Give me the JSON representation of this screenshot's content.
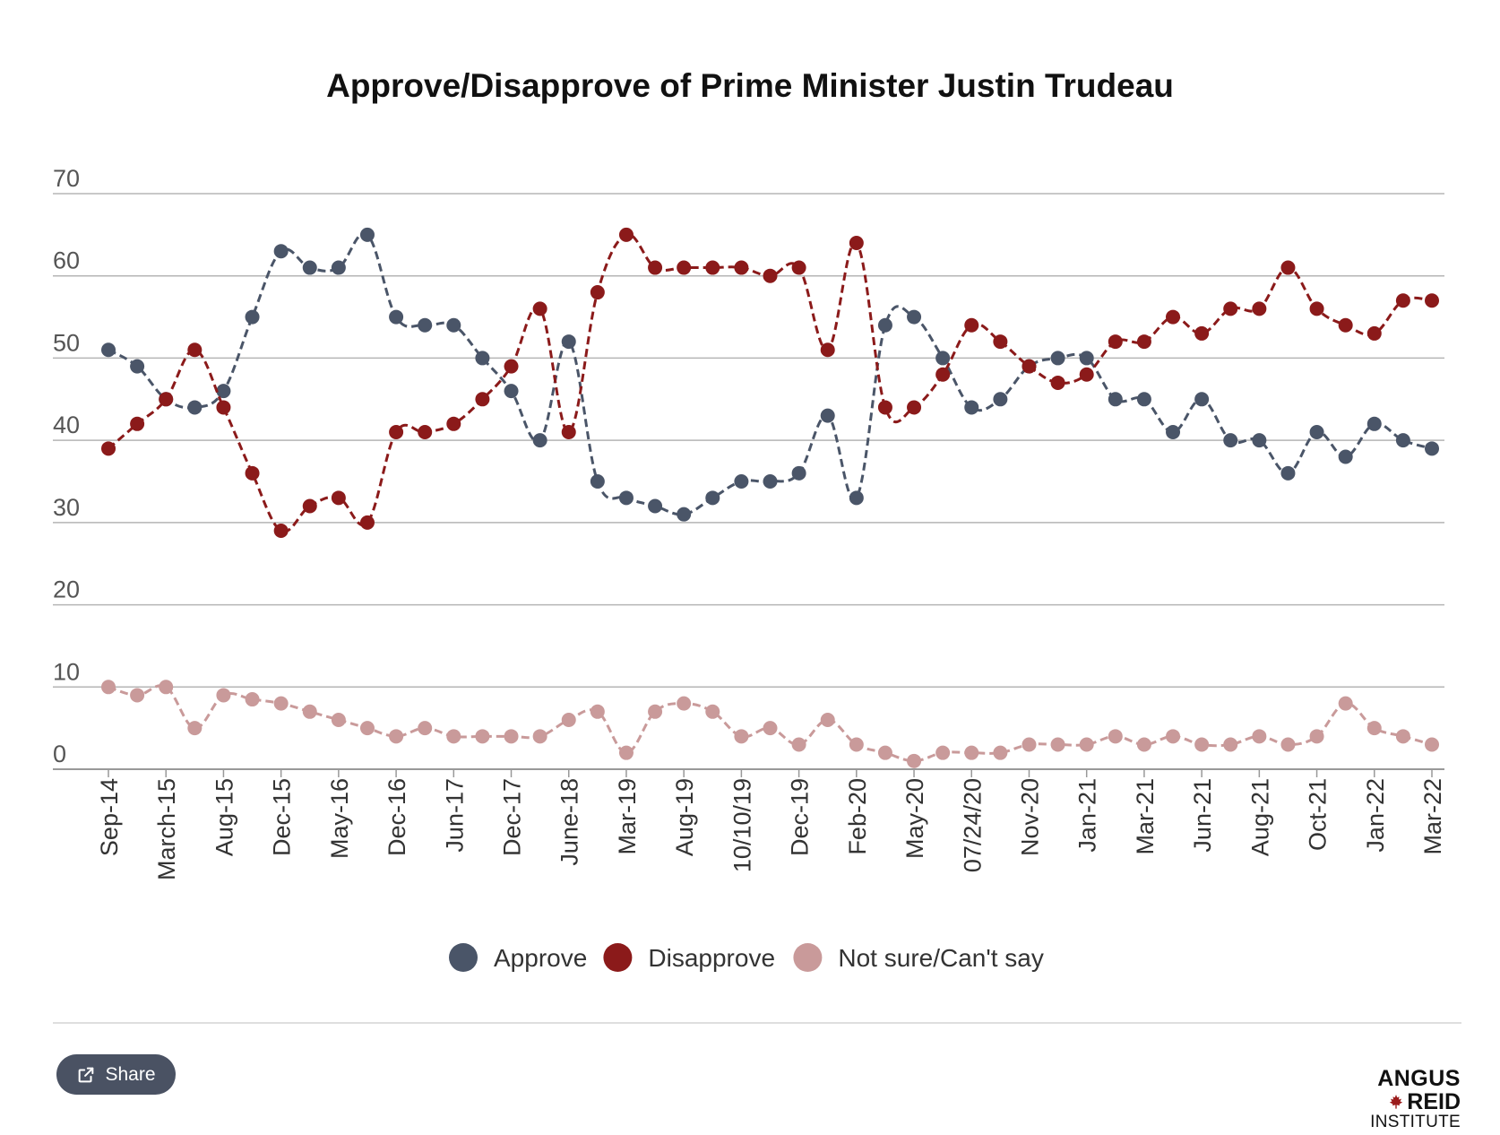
{
  "chart_data": {
    "type": "line",
    "title": "Approve/Disapprove of Prime Minister Justin Trudeau",
    "xlabel": "",
    "ylabel": "",
    "ylim": [
      0,
      70
    ],
    "yticks": [
      0,
      10,
      20,
      30,
      40,
      50,
      60,
      70
    ],
    "grid": true,
    "legend_position": "bottom",
    "x_tick_labels": [
      "Sep-14",
      "March-15",
      "Aug-15",
      "Dec-15",
      "May-16",
      "Dec-16",
      "Jun-17",
      "Dec-17",
      "June-18",
      "Mar-19",
      "Aug-19",
      "10/10/19",
      "Dec-19",
      "Feb-20",
      "May-20",
      "07/24/20",
      "Nov-20",
      "Jan-21",
      "Mar-21",
      "Jun-21",
      "Aug-21",
      "Oct-21",
      "Jan-22",
      "Mar-22"
    ],
    "series": [
      {
        "name": "Approve",
        "color": "#4a5568",
        "values": [
          51,
          49,
          45,
          44,
          46,
          55,
          63,
          61,
          61,
          65,
          55,
          54,
          54,
          50,
          46,
          40,
          52,
          35,
          33,
          32,
          31,
          33,
          35,
          35,
          36,
          43,
          33,
          54,
          55,
          50,
          44,
          45,
          49,
          50,
          50,
          45,
          45,
          41,
          45,
          40,
          40,
          36,
          41,
          38,
          42,
          40,
          39
        ]
      },
      {
        "name": "Disapprove",
        "color": "#8b1a1a",
        "values": [
          39,
          42,
          45,
          51,
          44,
          36,
          29,
          32,
          33,
          30,
          41,
          41,
          42,
          45,
          49,
          56,
          41,
          58,
          65,
          61,
          61,
          61,
          61,
          60,
          61,
          51,
          64,
          44,
          44,
          48,
          54,
          52,
          49,
          47,
          48,
          52,
          52,
          55,
          53,
          56,
          56,
          61,
          56,
          54,
          53,
          57,
          57
        ]
      },
      {
        "name": "Not sure/Can't say",
        "color": "#c99a9a",
        "values": [
          10,
          9,
          10,
          5,
          9,
          8.5,
          8,
          7,
          6,
          5,
          4,
          5,
          4,
          4,
          4,
          4,
          6,
          7,
          2,
          7,
          8,
          7,
          4,
          5,
          3,
          6,
          3,
          2,
          1,
          2,
          2,
          2,
          3,
          3,
          3,
          4,
          3,
          4,
          3,
          3,
          4,
          3,
          4,
          8,
          5,
          4,
          3
        ]
      }
    ]
  },
  "share": {
    "label": "Share",
    "icon": "share-icon"
  },
  "logo": {
    "line1": "ANGUS",
    "line2": "REID",
    "line3": "INSTITUTE",
    "icon": "maple-leaf-icon"
  }
}
